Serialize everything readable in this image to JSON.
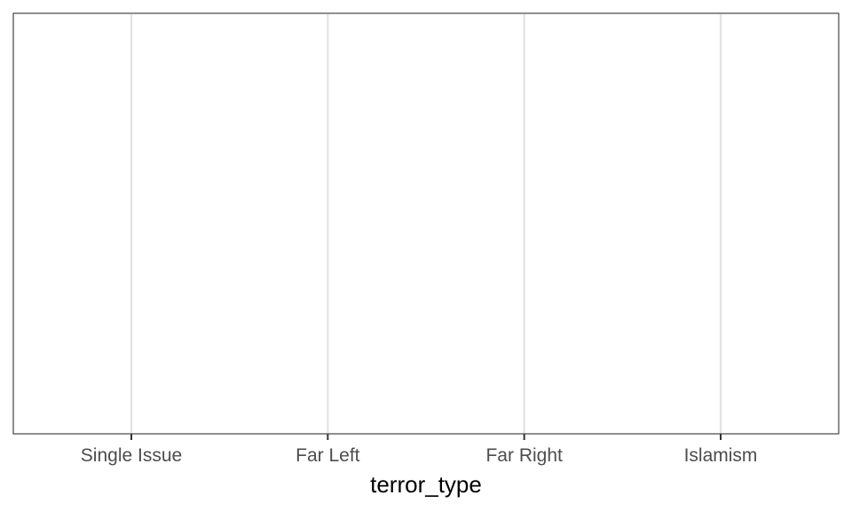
{
  "chart_data": {
    "type": "bar",
    "categories": [
      "Single Issue",
      "Far Left",
      "Far Right",
      "Islamism"
    ],
    "series": [],
    "xlabel": "terror_type",
    "ylabel": "",
    "grid": "vertical major gridlines on, panel border on",
    "colors": {
      "background": "#ffffff",
      "border": "#333333",
      "grid": "#e3e3e3",
      "tick_label": "#4d4d4d",
      "axis_title": "#000000"
    }
  }
}
